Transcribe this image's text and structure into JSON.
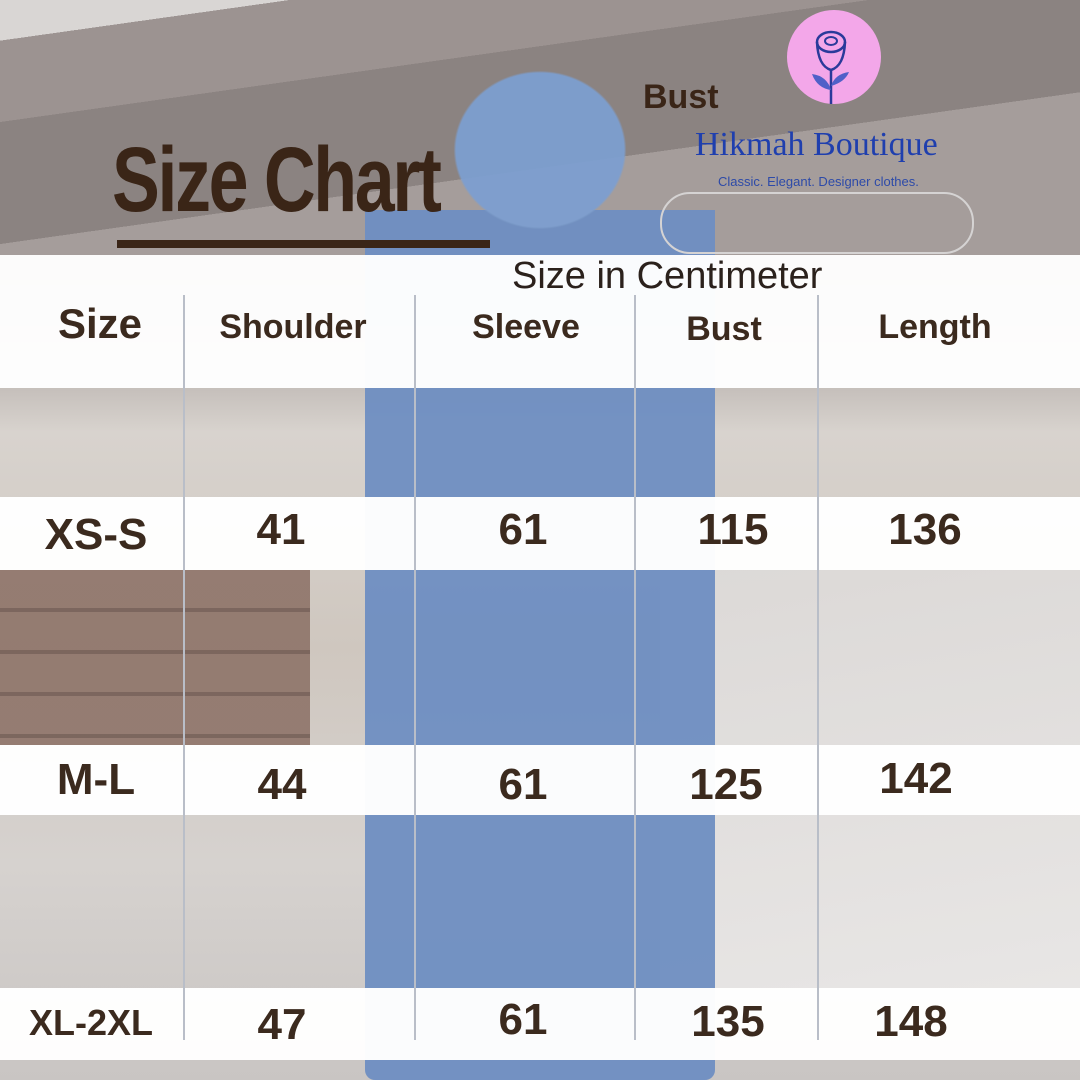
{
  "title": "Size Chart",
  "brand": {
    "name": "Hikmah Boutique",
    "tagline": "Classic. Elegant. Designer clothes.",
    "logo_icon": "rose-icon",
    "logo_color": "#f3a7e9",
    "brand_color": "#1f3fae"
  },
  "stray_label": "Bust",
  "unit_label": "Size in Centimeter",
  "chart_data": {
    "type": "table",
    "columns": [
      "Size",
      "Shoulder",
      "Sleeve",
      "Bust",
      "Length"
    ],
    "rows": [
      [
        "XS-S",
        "41",
        "61",
        "115",
        "136"
      ],
      [
        "M-L",
        "44",
        "61",
        "125",
        "142"
      ],
      [
        "XL-2XL",
        "47",
        "61",
        "135",
        "148"
      ]
    ]
  }
}
